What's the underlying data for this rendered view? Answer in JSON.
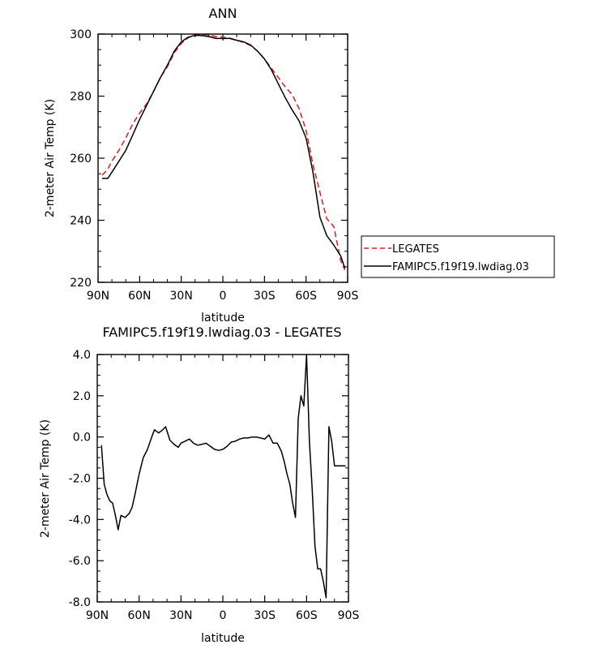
{
  "chart_data": [
    {
      "type": "line",
      "title": "ANN",
      "xlabel": "latitude",
      "ylabel": "2-meter Air Temp (K)",
      "xlim": [
        90,
        -90
      ],
      "ylim": [
        220,
        300
      ],
      "x_ticks": [
        90,
        60,
        30,
        0,
        -30,
        -60,
        -90
      ],
      "x_tick_labels": [
        "90N",
        "60N",
        "30N",
        "0",
        "30S",
        "60S",
        "90S"
      ],
      "y_ticks": [
        220,
        240,
        260,
        280,
        300
      ],
      "y_tick_labels": [
        "220",
        "240",
        "260",
        "280",
        "300"
      ],
      "grid": false,
      "legend": "outside-right",
      "series": [
        {
          "name": "LEGATES",
          "color": "#e41a1c",
          "dash": "dashed",
          "x": [
            87,
            83,
            80,
            75,
            70,
            65,
            60,
            55,
            50,
            45,
            40,
            35,
            30,
            25,
            20,
            15,
            10,
            5,
            0,
            -5,
            -10,
            -15,
            -20,
            -25,
            -30,
            -35,
            -40,
            -45,
            -50,
            -55,
            -60,
            -65,
            -70,
            -75,
            -80,
            -85,
            -88
          ],
          "y": [
            254.5,
            256.5,
            259,
            262.5,
            266.5,
            271,
            274.5,
            277.5,
            281.5,
            286,
            289.5,
            294,
            297,
            298.8,
            299.8,
            299.9,
            299.7,
            299.2,
            299,
            298.7,
            298,
            297.3,
            296.3,
            294.5,
            292,
            289,
            286,
            283,
            280.5,
            276,
            269,
            258,
            249,
            240.5,
            238,
            227,
            224
          ]
        },
        {
          "name": "FAMIPC5.f19f19.lwdiag.03",
          "color": "#000000",
          "dash": "solid",
          "x": [
            87,
            83,
            80,
            75,
            70,
            65,
            60,
            55,
            50,
            45,
            40,
            35,
            30,
            25,
            20,
            15,
            10,
            5,
            0,
            -5,
            -10,
            -15,
            -20,
            -25,
            -30,
            -35,
            -40,
            -45,
            -50,
            -55,
            -60,
            -65,
            -70,
            -75,
            -80,
            -85,
            -88
          ],
          "y": [
            253.5,
            253.5,
            255.5,
            259,
            262.5,
            267.5,
            272.5,
            277,
            281.5,
            286,
            290,
            294.5,
            297.5,
            299,
            299.6,
            299.5,
            299.2,
            298.6,
            298.6,
            298.6,
            298,
            297.5,
            296.5,
            294.5,
            292,
            288.5,
            284,
            279.5,
            275.5,
            272,
            266.5,
            255.5,
            241,
            235,
            232,
            228.5,
            224.5
          ]
        }
      ]
    },
    {
      "type": "line",
      "title": "FAMIPC5.f19f19.lwdiag.03 - LEGATES",
      "xlabel": "latitude",
      "ylabel": "2-meter Air Temp (K)",
      "xlim": [
        90,
        -90
      ],
      "ylim": [
        -8,
        4
      ],
      "x_ticks": [
        90,
        60,
        30,
        0,
        -30,
        -60,
        -90
      ],
      "x_tick_labels": [
        "90N",
        "60N",
        "30N",
        "0",
        "30S",
        "60S",
        "90S"
      ],
      "y_ticks": [
        -8,
        -6,
        -4,
        -2,
        0,
        2,
        4
      ],
      "y_tick_labels": [
        "-8.0",
        "-6.0",
        "-4.0",
        "-2.0",
        "0.0",
        "2.0",
        "4.0"
      ],
      "grid": false,
      "series": [
        {
          "color": "#000000",
          "x": [
            87,
            85,
            83,
            81,
            79,
            77,
            75,
            73,
            70,
            67,
            65,
            63,
            60,
            57,
            54,
            51,
            49,
            46,
            43,
            41,
            38,
            35,
            32,
            30,
            27,
            24,
            21,
            18,
            15,
            12,
            9,
            6,
            3,
            0,
            -3,
            -6,
            -9,
            -12,
            -15,
            -18,
            -21,
            -24,
            -27,
            -30,
            -33,
            -36,
            -39,
            -42,
            -44,
            -46,
            -48,
            -50,
            -52,
            -54,
            -56,
            -58,
            -60,
            -62,
            -64,
            -66,
            -68,
            -70,
            -72,
            -74,
            -76,
            -78,
            -80,
            -82,
            -84,
            -86,
            -88
          ],
          "y": [
            -0.4,
            -2.3,
            -2.8,
            -3.1,
            -3.2,
            -3.8,
            -4.5,
            -3.8,
            -3.9,
            -3.7,
            -3.4,
            -2.8,
            -1.8,
            -1.0,
            -0.6,
            0.0,
            0.35,
            0.2,
            0.35,
            0.5,
            -0.15,
            -0.35,
            -0.5,
            -0.3,
            -0.2,
            -0.1,
            -0.3,
            -0.4,
            -0.35,
            -0.3,
            -0.45,
            -0.6,
            -0.65,
            -0.6,
            -0.45,
            -0.25,
            -0.2,
            -0.1,
            -0.05,
            -0.05,
            0.0,
            0.0,
            -0.05,
            -0.1,
            0.1,
            -0.3,
            -0.3,
            -0.7,
            -1.2,
            -1.8,
            -2.3,
            -3.2,
            -3.9,
            0.9,
            2.0,
            1.5,
            4.0,
            -0.2,
            -2.5,
            -5.3,
            -6.4,
            -6.4,
            -7.0,
            -7.8,
            0.5,
            -0.2,
            -1.4,
            -1.4,
            -1.4,
            -1.4,
            -1.4
          ]
        }
      ]
    }
  ]
}
